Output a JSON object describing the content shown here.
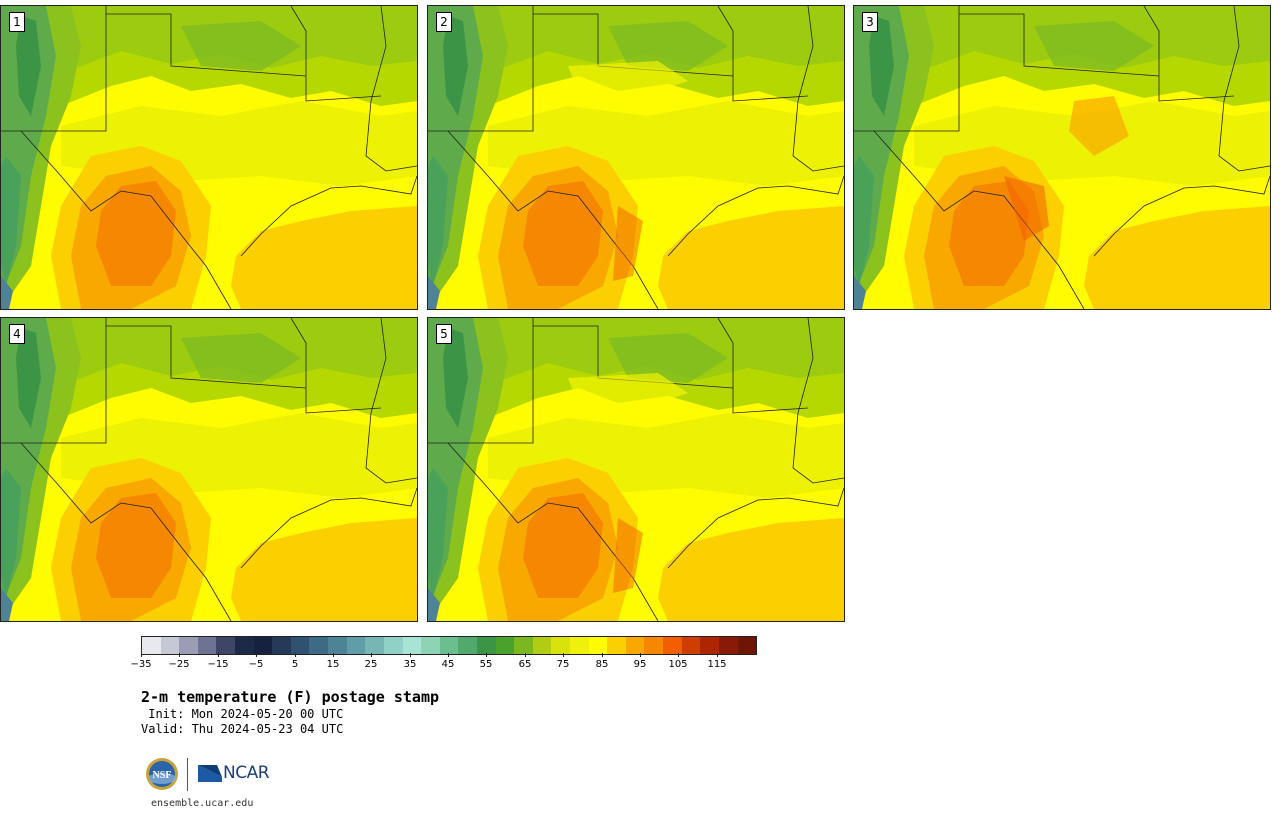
{
  "panels": [
    {
      "label": "1"
    },
    {
      "label": "2"
    },
    {
      "label": "3"
    },
    {
      "label": "4"
    },
    {
      "label": "5"
    }
  ],
  "colorbar": {
    "colors": [
      "#e8e9ef",
      "#c7c8d6",
      "#9a9db4",
      "#6e7393",
      "#3f4567",
      "#1d2a47",
      "#15213e",
      "#233a58",
      "#2f5271",
      "#3f6a86",
      "#4e8396",
      "#5f9ea6",
      "#76b6b5",
      "#91d0c6",
      "#a8e4d4",
      "#8ed3b5",
      "#6bbf8f",
      "#52a96d",
      "#3c9546",
      "#4aa22d",
      "#7bb820",
      "#b1cc12",
      "#d9e20a",
      "#f0f10a",
      "#fffb00",
      "#fbcf00",
      "#f9a800",
      "#f68700",
      "#f35f00",
      "#cd3e00",
      "#ad2600",
      "#8a1a08",
      "#6e1505"
    ],
    "tick_labels": [
      "−35",
      "−25",
      "−15",
      "−5",
      "5",
      "15",
      "25",
      "35",
      "45",
      "55",
      "65",
      "75",
      "85",
      "95",
      "105",
      "115"
    ]
  },
  "title": "2-m temperature (F) postage stamp",
  "init": " Init: Mon 2024-05-20 00 UTC",
  "valid": "Valid: Thu 2024-05-23 04 UTC",
  "logos": {
    "nsf_text": "NSF",
    "ncar_text": "NCAR"
  },
  "footer_url": "ensemble.ucar.edu"
}
